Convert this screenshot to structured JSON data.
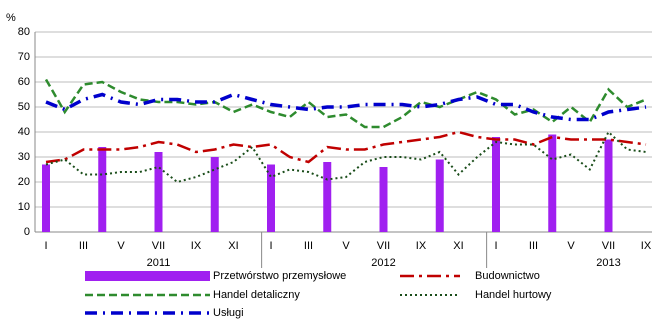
{
  "chart_data": {
    "type": "bar-line",
    "y_unit_label": "%",
    "categories": [
      "I",
      null,
      "III",
      null,
      "V",
      null,
      "VII",
      null,
      "IX",
      null,
      "XI",
      null,
      "I",
      null,
      "III",
      null,
      "V",
      null,
      "VII",
      null,
      "IX",
      null,
      "XI",
      null,
      "I",
      null,
      "III",
      null,
      "V",
      null,
      "VII",
      null,
      "IX"
    ],
    "year_labels": [
      "2011",
      "2012",
      "2013"
    ],
    "ylim": [
      0,
      80
    ],
    "yticks": [
      0,
      10,
      20,
      30,
      40,
      50,
      60,
      70,
      80
    ],
    "grid": true,
    "series": [
      {
        "name": "Przetwórstwo przemysłowe",
        "kind": "bar",
        "color": "#a020f0",
        "values": [
          27,
          null,
          null,
          34,
          null,
          null,
          32,
          null,
          null,
          30,
          null,
          null,
          27,
          null,
          null,
          28,
          null,
          null,
          26,
          null,
          null,
          29,
          null,
          null,
          38,
          null,
          null,
          39,
          null,
          null,
          37,
          null,
          null
        ]
      },
      {
        "name": "Budownictwo",
        "kind": "line",
        "color": "#c00000",
        "dash": "14,5,3,5",
        "width": 2.5,
        "values": [
          28,
          29,
          33,
          33,
          33,
          34,
          36,
          35,
          32,
          33,
          35,
          34,
          35,
          30,
          28,
          34,
          33,
          33,
          35,
          36,
          37,
          38,
          40,
          38,
          37,
          37,
          35,
          38,
          37,
          37,
          37,
          36,
          35
        ]
      },
      {
        "name": "Handel detaliczny",
        "kind": "line",
        "color": "#2e8b2e",
        "dash": "8,4",
        "width": 2.5,
        "values": [
          61,
          48,
          59,
          60,
          56,
          53,
          52,
          52,
          51,
          52,
          48,
          51,
          48,
          46,
          52,
          46,
          47,
          42,
          42,
          46,
          52,
          50,
          53,
          56,
          53,
          47,
          49,
          44,
          50,
          44,
          57,
          50,
          53
        ]
      },
      {
        "name": "Handel hurtowy",
        "kind": "line",
        "color": "#1a4d1a",
        "dash": "2,3",
        "width": 2,
        "values": [
          27,
          29,
          23,
          23,
          24,
          24,
          26,
          20,
          22,
          25,
          28,
          34,
          22,
          25,
          24,
          21,
          22,
          28,
          30,
          30,
          29,
          32,
          23,
          30,
          36,
          35,
          35,
          29,
          31,
          25,
          40,
          33,
          32
        ]
      },
      {
        "name": "Usługi",
        "kind": "line",
        "color": "#0000cc",
        "dash": "12,6,2,6",
        "width": 3.5,
        "values": [
          52,
          49,
          53,
          55,
          52,
          51,
          53,
          53,
          52,
          52,
          55,
          53,
          51,
          50,
          49,
          50,
          50,
          51,
          51,
          51,
          50,
          51,
          53,
          54,
          51,
          51,
          48,
          46,
          45,
          45,
          48,
          49,
          50
        ]
      }
    ]
  }
}
